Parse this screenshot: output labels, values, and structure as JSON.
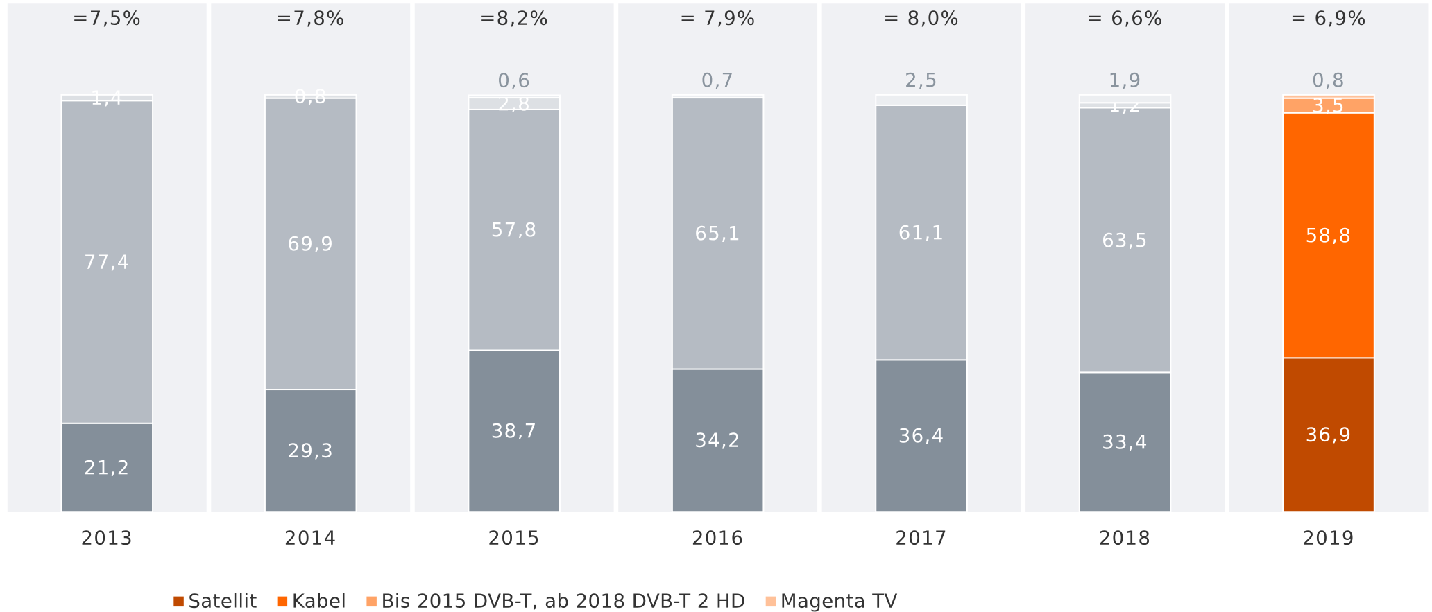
{
  "chart_data": {
    "type": "stacked_bar",
    "categories": [
      "2013",
      "2014",
      "2015",
      "2016",
      "2017",
      "2018",
      "2019"
    ],
    "annotations": [
      "=7,5%",
      "=7,8%",
      "=8,2%",
      "= 7,9%",
      "= 8,0%",
      "= 6,6%",
      "= 6,9%"
    ],
    "highlight": "2019",
    "ylim": [
      0,
      100
    ],
    "series": [
      {
        "name": "Satellit",
        "color": "#c04a00",
        "muted_color": "#848f9a",
        "values": [
          21.2,
          29.3,
          38.7,
          34.2,
          36.4,
          33.4,
          36.9
        ],
        "value_labels": [
          "21,2",
          "29,3",
          "38,7",
          "34,2",
          "36,4",
          "33,4",
          "36,9"
        ]
      },
      {
        "name": "Kabel",
        "color": "#ff6600",
        "muted_color": "#b5bbc3",
        "values": [
          77.4,
          69.9,
          57.8,
          65.1,
          61.1,
          63.5,
          58.8
        ],
        "value_labels": [
          "77,4",
          "69,9",
          "57,8",
          "65,1",
          "61,1",
          "63,5",
          "58,8"
        ]
      },
      {
        "name": "Bis 2015 DVB-T, ab 2018 DVB-T 2 HD",
        "color": "#ffa366",
        "muted_color": "#dde0e4",
        "values": [
          1.4,
          0.8,
          2.8,
          null,
          null,
          1.2,
          3.5
        ],
        "value_labels": [
          "1,4",
          "0,8",
          "2,8",
          null,
          null,
          "1,2",
          "3,5"
        ]
      },
      {
        "name": "Magenta TV",
        "color": "#ffc199",
        "muted_color": "#eceef1",
        "values": [
          null,
          null,
          0.6,
          0.7,
          2.5,
          1.9,
          0.8
        ],
        "value_labels": [
          null,
          null,
          "0,6",
          "0,7",
          "2,5",
          "1,9",
          "0,8"
        ]
      }
    ]
  }
}
